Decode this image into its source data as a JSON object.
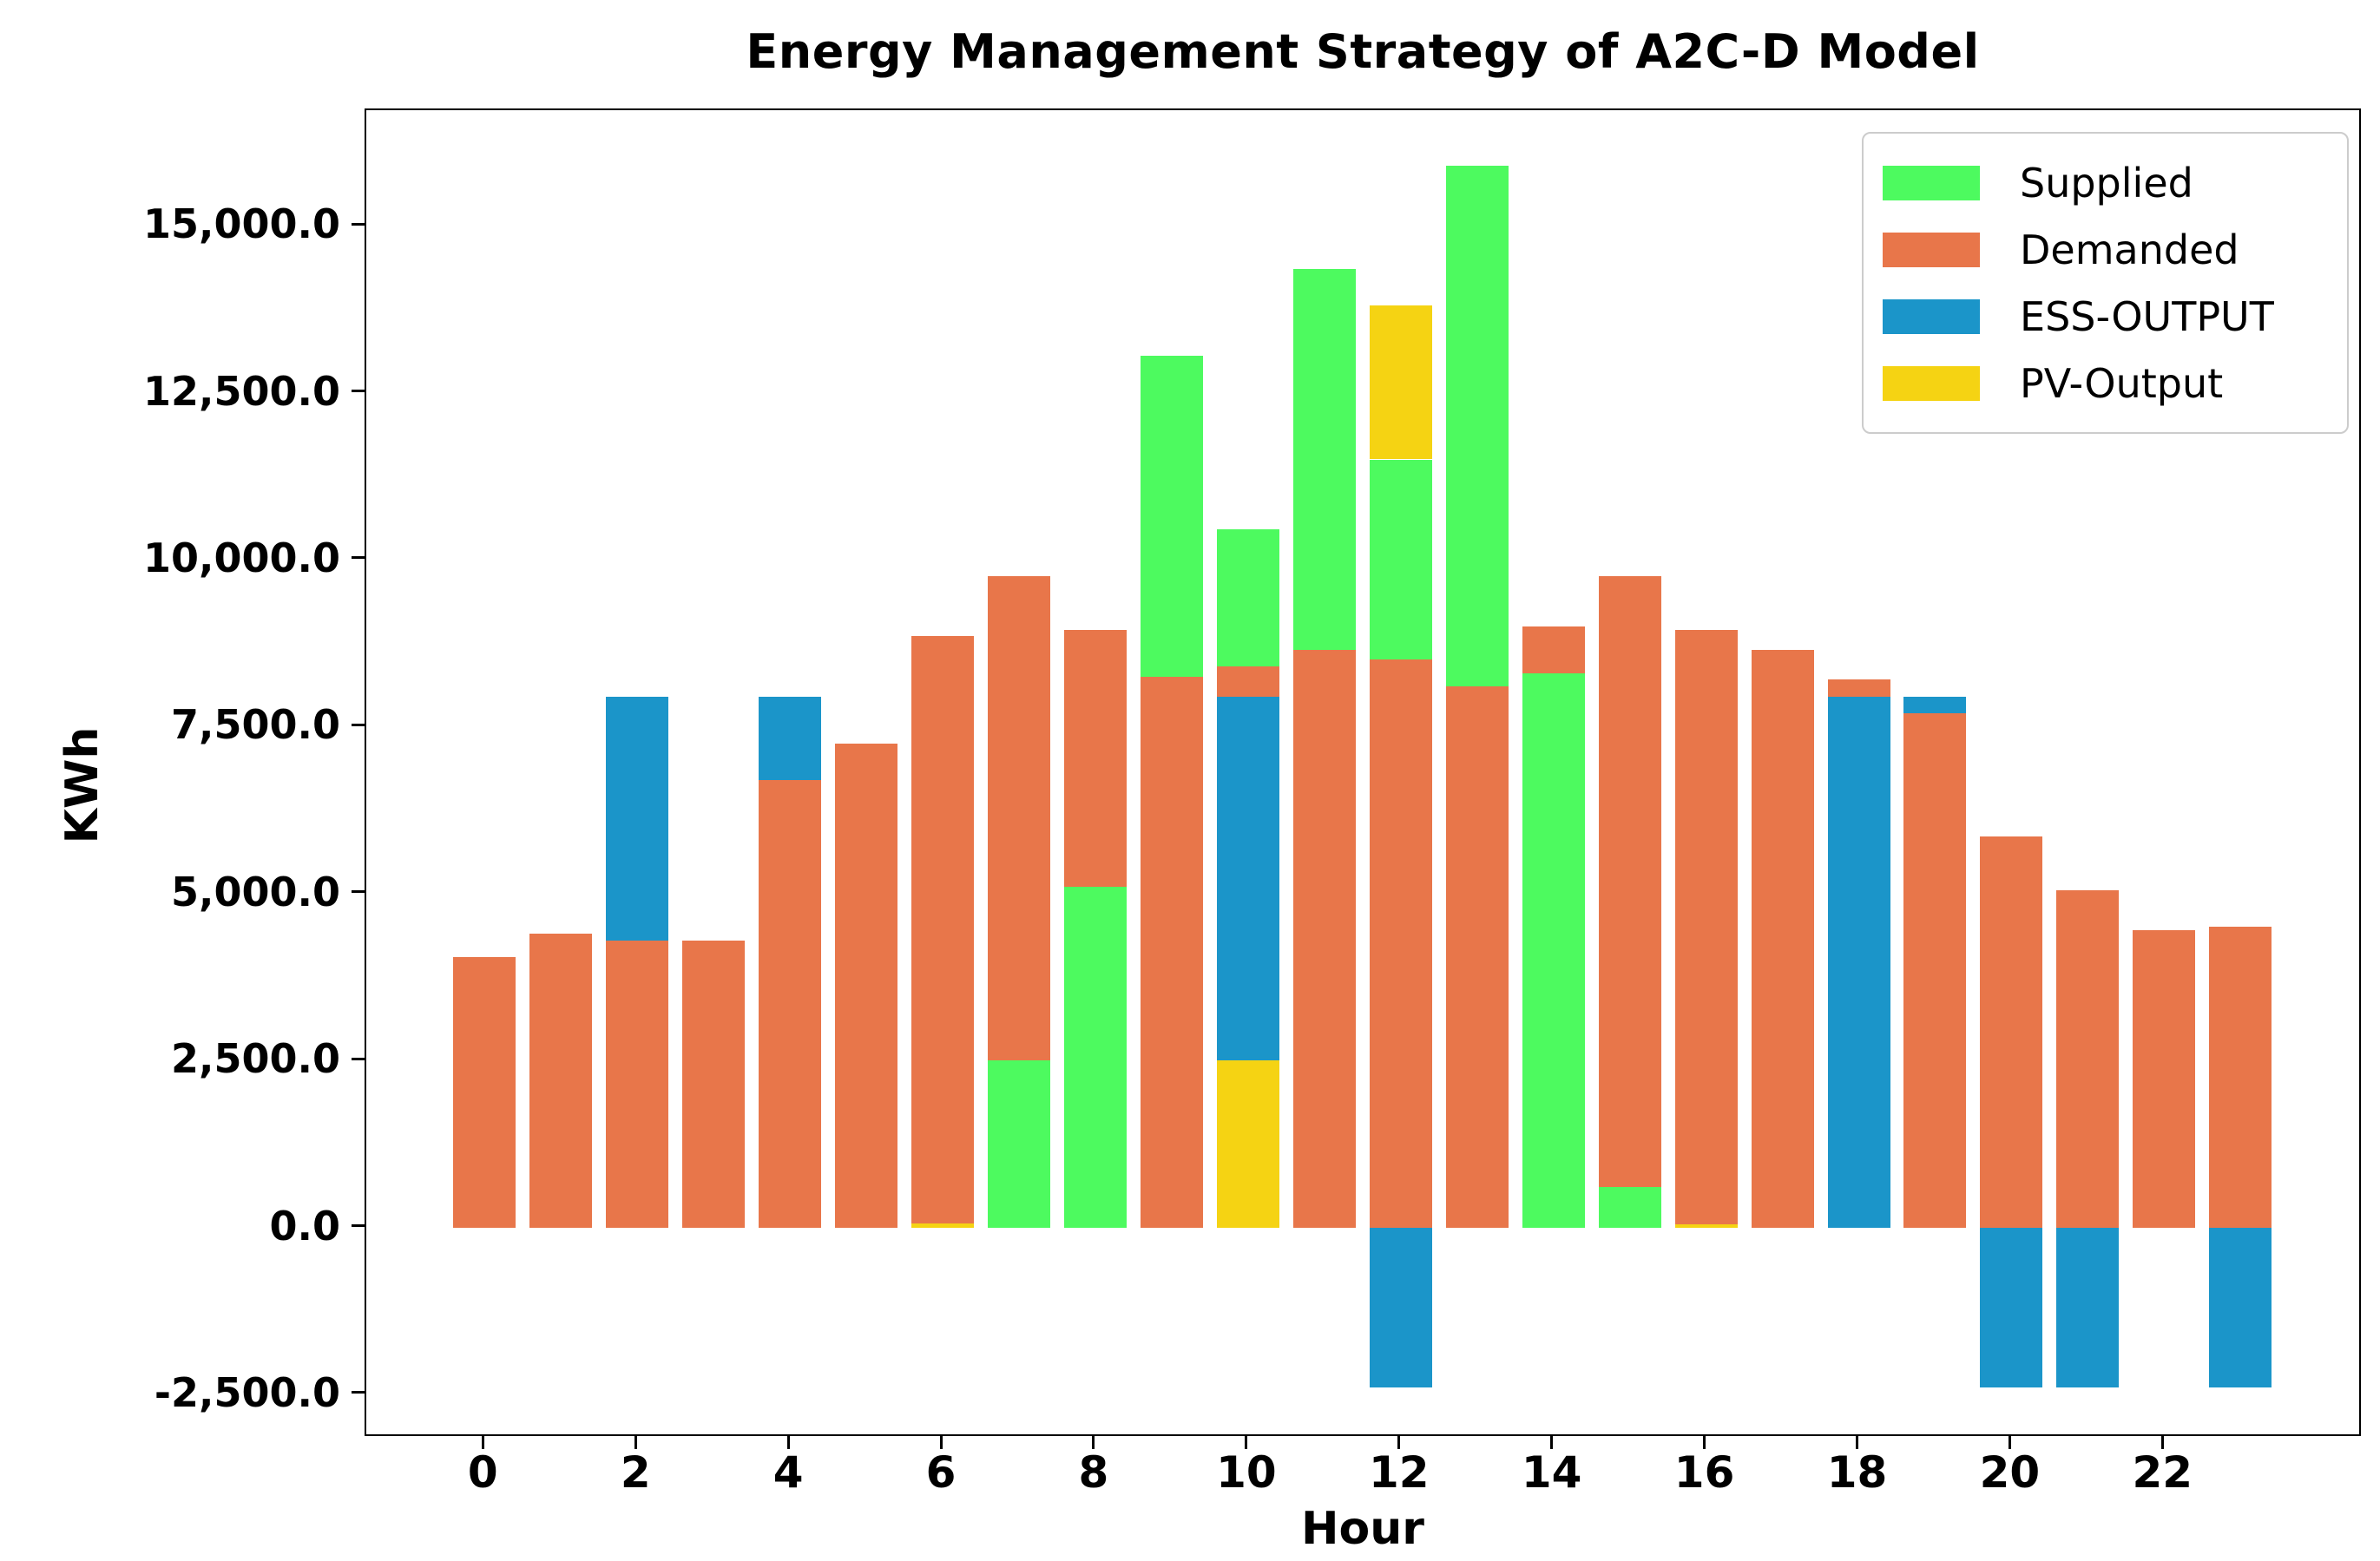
{
  "chart_data": {
    "type": "bar",
    "stacked": true,
    "title": "Energy Management Strategy of A2C-D Model",
    "xlabel": "Hour",
    "ylabel": "KWh",
    "grid": false,
    "legend_position": "upper right",
    "xlim": [
      -1.55,
      24.6
    ],
    "ylim": [
      -3150,
      16730
    ],
    "xtick_hours": [
      0,
      2,
      4,
      6,
      8,
      10,
      12,
      14,
      16,
      18,
      20,
      22
    ],
    "xtick_labels": [
      "0",
      "2",
      "4",
      "6",
      "8",
      "10",
      "12",
      "14",
      "16",
      "18",
      "20",
      "22"
    ],
    "ytick_values": [
      -2500,
      0,
      2500,
      5000,
      7500,
      10000,
      12500,
      15000
    ],
    "ytick_labels": [
      "-2,500.0",
      "0.0",
      "2,500.0",
      "5,000.0",
      "7,500.0",
      "10,000.0",
      "12,500.0",
      "15,000.0"
    ],
    "legend": [
      {
        "label": "Supplied",
        "color": "#4DFA5F"
      },
      {
        "label": "Demanded",
        "color": "#E8764A"
      },
      {
        "label": "ESS-OUTPUT",
        "color": "#1B95C9"
      },
      {
        "label": "PV-Output",
        "color": "#F5D313"
      }
    ],
    "series_colors": {
      "Supplied": "#4DFA5F",
      "Demanded": "#E8764A",
      "ESS-OUTPUT": "#1B95C9",
      "PV-Output": "#F5D313"
    },
    "unit": "KWh",
    "bars": [
      {
        "hour": 0,
        "segments": [
          {
            "series": "Demanded",
            "value": 4050
          }
        ]
      },
      {
        "hour": 1,
        "segments": [
          {
            "series": "Demanded",
            "value": 4400
          }
        ]
      },
      {
        "hour": 2,
        "segments": [
          {
            "series": "Demanded",
            "value": 4300
          },
          {
            "series": "ESS-OUTPUT",
            "value": 3650
          }
        ]
      },
      {
        "hour": 3,
        "segments": [
          {
            "series": "Demanded",
            "value": 4300
          }
        ]
      },
      {
        "hour": 4,
        "segments": [
          {
            "series": "Demanded",
            "value": 6700
          },
          {
            "series": "ESS-OUTPUT",
            "value": 1250
          }
        ]
      },
      {
        "hour": 5,
        "segments": [
          {
            "series": "Demanded",
            "value": 7250
          }
        ]
      },
      {
        "hour": 6,
        "segments": [
          {
            "series": "PV-Output",
            "value": 60
          },
          {
            "series": "Demanded",
            "value": 8790
          }
        ]
      },
      {
        "hour": 7,
        "segments": [
          {
            "series": "Supplied",
            "value": 2500
          },
          {
            "series": "Demanded",
            "value": 7250
          }
        ]
      },
      {
        "hour": 8,
        "segments": [
          {
            "series": "Supplied",
            "value": 5100
          },
          {
            "series": "Demanded",
            "value": 3850
          }
        ]
      },
      {
        "hour": 9,
        "segments": [
          {
            "series": "Demanded",
            "value": 8250
          },
          {
            "series": "Supplied",
            "value": 4800
          }
        ]
      },
      {
        "hour": 10,
        "segments": [
          {
            "series": "PV-Output",
            "value": 2500
          },
          {
            "series": "ESS-OUTPUT",
            "value": 5450
          },
          {
            "series": "Demanded",
            "value": 450
          },
          {
            "series": "Supplied",
            "value": 2050
          }
        ]
      },
      {
        "hour": 11,
        "segments": [
          {
            "series": "Demanded",
            "value": 8650
          },
          {
            "series": "Supplied",
            "value": 5700
          }
        ]
      },
      {
        "hour": 12,
        "segments": [
          {
            "series": "Demanded",
            "value": 8500
          },
          {
            "series": "Supplied",
            "value": 3000
          },
          {
            "series": "PV-Output",
            "value": 2300
          },
          {
            "series": "ESS-OUTPUT",
            "value": -2400
          }
        ]
      },
      {
        "hour": 13,
        "segments": [
          {
            "series": "Demanded",
            "value": 8100
          },
          {
            "series": "Supplied",
            "value": 7800
          }
        ]
      },
      {
        "hour": 14,
        "segments": [
          {
            "series": "Supplied",
            "value": 8300
          },
          {
            "series": "Demanded",
            "value": 700
          }
        ]
      },
      {
        "hour": 15,
        "segments": [
          {
            "series": "Supplied",
            "value": 600
          },
          {
            "series": "Demanded",
            "value": 9150
          }
        ]
      },
      {
        "hour": 16,
        "segments": [
          {
            "series": "PV-Output",
            "value": 50
          },
          {
            "series": "Demanded",
            "value": 8900
          }
        ]
      },
      {
        "hour": 17,
        "segments": [
          {
            "series": "Demanded",
            "value": 8650
          }
        ]
      },
      {
        "hour": 18,
        "segments": [
          {
            "series": "ESS-OUTPUT",
            "value": 7950
          },
          {
            "series": "Demanded",
            "value": 260
          }
        ]
      },
      {
        "hour": 19,
        "segments": [
          {
            "series": "Demanded",
            "value": 7700
          },
          {
            "series": "ESS-OUTPUT",
            "value": 250
          }
        ]
      },
      {
        "hour": 20,
        "segments": [
          {
            "series": "Demanded",
            "value": 5850
          },
          {
            "series": "ESS-OUTPUT",
            "value": -2400
          }
        ]
      },
      {
        "hour": 21,
        "segments": [
          {
            "series": "Demanded",
            "value": 5050
          },
          {
            "series": "ESS-OUTPUT",
            "value": -2400
          }
        ]
      },
      {
        "hour": 22,
        "segments": [
          {
            "series": "Demanded",
            "value": 4450
          }
        ]
      },
      {
        "hour": 23,
        "segments": [
          {
            "series": "Demanded",
            "value": 4500
          },
          {
            "series": "ESS-OUTPUT",
            "value": -2400
          }
        ]
      }
    ]
  }
}
